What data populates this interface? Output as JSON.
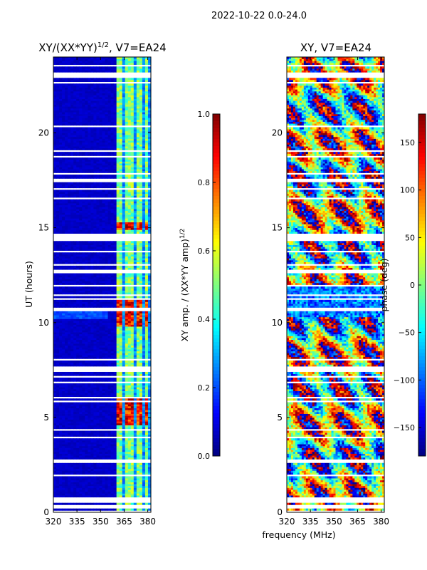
{
  "suptitle": "2022-10-22 0.0-24.0",
  "xlabel": "frequency (MHz)",
  "ylabel": "UT (hours)",
  "chart_data": [
    {
      "type": "heatmap",
      "title_main": "XY/(XX*YY)",
      "title_sup": "1/2",
      "title_rest": ", V7=EA24",
      "x_ticks": [
        "320",
        "335",
        "350",
        "365",
        "380"
      ],
      "x_range": [
        320,
        382
      ],
      "y_ticks": [
        "0",
        "5",
        "10",
        "15",
        "20"
      ],
      "y_range": [
        0,
        24
      ],
      "colorbar": {
        "label_main": "XY amp. / (XX*YY amp)",
        "label_sup": "1/2",
        "ticks": [
          "0.0",
          "0.2",
          "0.4",
          "0.6",
          "0.8",
          "1.0"
        ],
        "range": [
          0,
          1
        ],
        "colormap": "jet"
      },
      "bright_channels_mhz": [
        361.5,
        363,
        366,
        368,
        371,
        373,
        376,
        378.5
      ],
      "peak_periods_hours": [
        [
          4.6,
          6.0
        ],
        [
          9.8,
          11.2
        ],
        [
          14.9,
          15.3
        ]
      ],
      "flagged_periods_hours": [
        [
          0.2,
          0.4
        ],
        [
          2.6,
          2.8
        ],
        [
          7.4,
          7.7
        ],
        [
          11.9,
          12.0
        ],
        [
          14.3,
          14.7
        ],
        [
          22.9,
          23.2
        ]
      ]
    },
    {
      "type": "heatmap",
      "title_main": "XY, V7=EA24",
      "x_ticks": [
        "320",
        "335",
        "350",
        "365",
        "380"
      ],
      "x_range": [
        320,
        382
      ],
      "y_ticks": [
        "0",
        "5",
        "10",
        "15",
        "20"
      ],
      "y_range": [
        0,
        24
      ],
      "colorbar": {
        "label": "phase (deg)",
        "ticks": [
          "150",
          "100",
          "50",
          "0",
          "−50",
          "−100",
          "−150"
        ],
        "tick_values": [
          150,
          100,
          50,
          0,
          -50,
          -100,
          -150
        ],
        "range": [
          -180,
          180
        ],
        "colormap": "jet"
      },
      "flagged_periods_hours": [
        [
          0.2,
          0.4
        ],
        [
          2.6,
          2.8
        ],
        [
          7.4,
          7.7
        ],
        [
          11.9,
          12.0
        ],
        [
          14.3,
          14.7
        ],
        [
          22.9,
          23.2
        ]
      ]
    }
  ]
}
